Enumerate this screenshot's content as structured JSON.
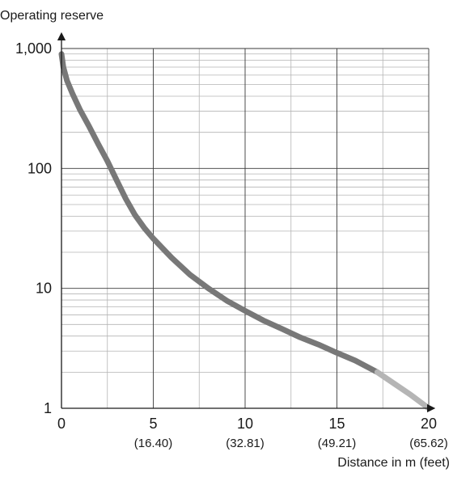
{
  "chart_data": {
    "type": "line",
    "title": "",
    "ylabel": "Operating reserve",
    "xlabel": "Distance in m (feet)",
    "xlim": [
      0,
      20
    ],
    "ylim": [
      1,
      1000
    ],
    "y_scale": "log",
    "grid": true,
    "x_ticks": [
      {
        "value": 0,
        "label": "0",
        "sublabel": ""
      },
      {
        "value": 5,
        "label": "5",
        "sublabel": "(16.40)"
      },
      {
        "value": 10,
        "label": "10",
        "sublabel": "(32.81)"
      },
      {
        "value": 15,
        "label": "15",
        "sublabel": "(49.21)"
      },
      {
        "value": 20,
        "label": "20",
        "sublabel": "(65.62)"
      }
    ],
    "y_ticks": [
      {
        "value": 1,
        "label": "1"
      },
      {
        "value": 10,
        "label": "10"
      },
      {
        "value": 100,
        "label": "100"
      },
      {
        "value": 1000,
        "label": "1,000"
      }
    ],
    "series": [
      {
        "color": "#787878",
        "x": [
          0,
          0.1,
          0.3,
          0.6,
          1,
          1.5,
          2,
          2.5,
          3,
          3.5,
          4,
          4.5,
          5,
          6,
          7,
          8,
          9,
          10,
          11,
          12,
          13,
          14,
          15,
          16,
          17.2
        ],
        "y": [
          900,
          700,
          540,
          420,
          310,
          225,
          160,
          115,
          80,
          56,
          41,
          32,
          26,
          18,
          13,
          10,
          7.9,
          6.5,
          5.4,
          4.6,
          3.9,
          3.4,
          2.9,
          2.5,
          2.0
        ]
      },
      {
        "color": "#b5b5b5",
        "x": [
          17.2,
          18,
          19,
          20
        ],
        "y": [
          2.0,
          1.65,
          1.3,
          1.0
        ]
      }
    ]
  }
}
